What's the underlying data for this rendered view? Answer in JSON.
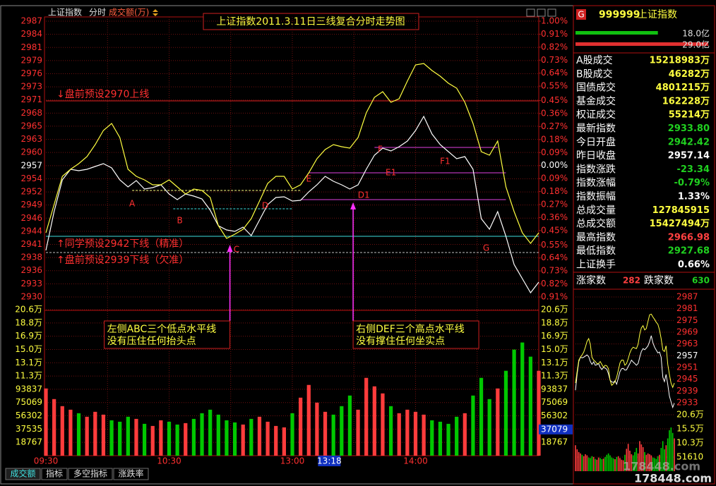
{
  "toolbar": [
    "上证指数",
    "分时",
    "成交额(万)"
  ],
  "chart_data": [
    {
      "type": "line",
      "title": "上证指数2011.3.11日三线复合分时走势图",
      "categories": [
        "09:30",
        null,
        null,
        null,
        null,
        null,
        null,
        null,
        null,
        null,
        null,
        null,
        null,
        null,
        null,
        "10:30",
        null,
        null,
        null,
        null,
        null,
        null,
        null,
        null,
        null,
        null,
        null,
        null,
        null,
        null,
        "13:00",
        null,
        null,
        null,
        null,
        null,
        null,
        null,
        null,
        null,
        null,
        null,
        null,
        null,
        null,
        "14:00",
        null,
        null,
        null,
        null,
        null,
        null,
        null,
        null,
        null,
        null,
        null,
        null,
        null,
        null,
        null
      ],
      "series": [
        {
          "color": "#ffffff",
          "values": [
            2939.79,
            2947.73,
            2954.23,
            2956.39,
            2956.1,
            2956.39,
            2956.97,
            2957.55,
            2956.68,
            2954.23,
            2952.78,
            2954.08,
            2952.35,
            2952.64,
            2953.22,
            2951.34,
            2950.18,
            2951.34,
            2950.91,
            2950.33,
            2948.02,
            2944.84,
            2943.98,
            2943.69,
            2944.55,
            2942.82,
            2946.0,
            2949.17,
            2950.62,
            2950.76,
            2949.9,
            2950.04,
            2951.77,
            2953.22,
            2954.95,
            2953.94,
            2953.22,
            2952.35,
            2953.22,
            2956.39,
            2959.28,
            2960.72,
            2960.15,
            2961.01,
            2962.17,
            2964.33,
            2967.22,
            2963.61,
            2961.45,
            2960.0,
            2958.56,
            2958.99,
            2956.39,
            2946.29,
            2944.12,
            2947.73,
            2942.68,
            2936.9,
            2934.01,
            2931.13,
            2933.29
          ]
        },
        {
          "color": "#ffff40",
          "values": [
            2943.4,
            2949.17,
            2954.95,
            2956.39,
            2957.55,
            2958.99,
            2961.45,
            2964.33,
            2965.78,
            2962.89,
            2956.39,
            2954.95,
            2954.23,
            2953.22,
            2953.22,
            2954.23,
            2952.78,
            2951.34,
            2952.35,
            2952.06,
            2950.62,
            2944.84,
            2942.24,
            2943.11,
            2944.12,
            2946.29,
            2949.9,
            2953.5,
            2954.95,
            2954.95,
            2952.35,
            2953.22,
            2955.67,
            2958.56,
            2960.43,
            2961.45,
            2961.01,
            2960.72,
            2962.89,
            2967.94,
            2971.12,
            2972.27,
            2970.11,
            2970.83,
            2974.44,
            2977.76,
            2978.05,
            2976.6,
            2975.45,
            2974.01,
            2972.99,
            2970.11,
            2965.78,
            2960.0,
            2959.28,
            2962.17,
            2952.78,
            2947.73,
            2943.4,
            2941.23,
            2943.4
          ]
        }
      ],
      "ylim": [
        2930.26,
        2986.71
      ],
      "yticks": [
        {
          "value": 2986.71,
          "label": "2987"
        },
        {
          "value": 2984.02,
          "label": "2984"
        },
        {
          "value": 2981.33,
          "label": "2981"
        },
        {
          "value": 2978.65,
          "label": "2979"
        },
        {
          "value": 2975.96,
          "label": "2976"
        },
        {
          "value": 2973.27,
          "label": "2973"
        },
        {
          "value": 2970.58,
          "label": "2971"
        },
        {
          "value": 2967.89,
          "label": "2968"
        },
        {
          "value": 2965.21,
          "label": "2965"
        },
        {
          "value": 2962.52,
          "label": "2963"
        },
        {
          "value": 2959.83,
          "label": "2960"
        },
        {
          "value": 2957.14,
          "label": "2957"
        },
        {
          "value": 2954.45,
          "label": "2954"
        },
        {
          "value": 2951.76,
          "label": "2952"
        },
        {
          "value": 2949.08,
          "label": "2949"
        },
        {
          "value": 2946.39,
          "label": "2946"
        },
        {
          "value": 2943.7,
          "label": "2944"
        },
        {
          "value": 2941.01,
          "label": "2941"
        },
        {
          "value": 2938.32,
          "label": "2938"
        },
        {
          "value": 2935.64,
          "label": "2936"
        },
        {
          "value": 2932.95,
          "label": "2933"
        },
        {
          "value": 2930.26,
          "label": "2930"
        }
      ],
      "y2lim": [
        -0.91,
        1.0
      ],
      "y2ticks": [
        {
          "value": 1.0,
          "label": "1.00%"
        },
        {
          "value": 0.91,
          "label": "0.91%"
        },
        {
          "value": 0.82,
          "label": "0.82%"
        },
        {
          "value": 0.73,
          "label": "0.73%"
        },
        {
          "value": 0.64,
          "label": "0.64%"
        },
        {
          "value": 0.55,
          "label": "0.55%"
        },
        {
          "value": 0.45,
          "label": "0.45%"
        },
        {
          "value": 0.36,
          "label": "0.36%"
        },
        {
          "value": 0.27,
          "label": "0.27%"
        },
        {
          "value": 0.18,
          "label": "0.18%"
        },
        {
          "value": 0.09,
          "label": "0.09%"
        },
        {
          "value": 0,
          "label": "0.00%"
        },
        {
          "value": -0.09,
          "label": "0.09%"
        },
        {
          "value": -0.18,
          "label": "0.18%"
        },
        {
          "value": -0.27,
          "label": "0.27%"
        },
        {
          "value": -0.36,
          "label": "0.36%"
        },
        {
          "value": -0.45,
          "label": "0.45%"
        },
        {
          "value": -0.55,
          "label": "0.55%"
        },
        {
          "value": -0.64,
          "label": "0.64%"
        },
        {
          "value": -0.73,
          "label": "0.73%"
        },
        {
          "value": -0.82,
          "label": "0.82%"
        },
        {
          "value": -0.91,
          "label": "0.91%"
        }
      ],
      "grid": true,
      "levels": [
        {
          "value": 2970.4,
          "color": "#e02020",
          "label": "↓盘前预设2970上线"
        },
        {
          "value": 2942.68,
          "color": "#40e0e0",
          "label": "↑同学预设2942下线（精准）"
        },
        {
          "value": 2939.36,
          "color": "#c0c0c0",
          "label": "↑盘前预设2939下线（欠准）",
          "dash": true
        },
        {
          "value": 2952.06,
          "from": 10.5,
          "to": 31,
          "color": "#ffff80",
          "dash": true
        },
        {
          "value": 2948.3,
          "from": 15.5,
          "to": 30,
          "color": "#40e0e0",
          "dash": true
        },
        {
          "value": 2950.19,
          "from": 31,
          "to": 56,
          "color": "#e040e0"
        },
        {
          "value": 2955.67,
          "from": 32,
          "to": 56,
          "color": "#e040e0"
        },
        {
          "value": 2960.87,
          "from": 40,
          "to": 55,
          "color": "#e040e0"
        }
      ],
      "points": [
        {
          "label": "A",
          "x": 10.5,
          "y": 2950.62
        },
        {
          "label": "B",
          "x": 16.3,
          "y": 2947.15
        },
        {
          "label": "C",
          "x": 23.2,
          "y": 2941.23
        },
        {
          "label": "D",
          "x": 26.7,
          "y": 2950.19
        },
        {
          "label": "D1",
          "x": 38.7,
          "y": 2952.35
        },
        {
          "label": "E",
          "x": 32,
          "y": 2955.67
        },
        {
          "label": "E1",
          "x": 42,
          "y": 2956.97
        },
        {
          "label": "F",
          "x": 40.7,
          "y": 2961.73
        },
        {
          "label": "F1",
          "x": 48.6,
          "y": 2959.28
        },
        {
          "label": "G",
          "x": 53.6,
          "y": 2941.5
        }
      ],
      "notes": [
        {
          "lines": [
            "左侧ABC三个低点水平线",
            "没有压住任何抬头点"
          ],
          "x": 22.4,
          "y": 2941.5
        },
        {
          "lines": [
            "右侧DEF三个高点水平线",
            "没有撑住任何坐实点"
          ],
          "x": 37.4,
          "y": 2950.2
        }
      ],
      "cursor": {
        "label": "13:18",
        "x": 34.5
      }
    },
    {
      "type": "bar",
      "values": [
        95000,
        80000,
        70000,
        65000,
        60000,
        55000,
        62000,
        58000,
        50000,
        48000,
        55000,
        52000,
        45000,
        42000,
        50000,
        48000,
        44000,
        46000,
        52000,
        60000,
        65000,
        58000,
        50000,
        47000,
        44000,
        52000,
        55000,
        48000,
        42000,
        40000,
        60000,
        82000,
        100000,
        75000,
        62000,
        58000,
        70000,
        85000,
        65000,
        110000,
        98000,
        88000,
        70000,
        60000,
        65000,
        62000,
        58000,
        50000,
        48000,
        45000,
        55000,
        60000,
        85000,
        110000,
        80000,
        95000,
        120000,
        150000,
        160000,
        140000,
        120000
      ],
      "up_color": "#ff3c3c",
      "down_color": "#00c800",
      "ylim": [
        0,
        206437
      ],
      "yticks": [
        {
          "value": 206437,
          "label": "20.6万"
        },
        {
          "value": 187670,
          "label": "18.8万"
        },
        {
          "value": 168903,
          "label": "16.9万"
        },
        {
          "value": 150136,
          "label": "15.0万"
        },
        {
          "value": 131369,
          "label": "13.1万"
        },
        {
          "value": 112602,
          "label": "11.3万"
        },
        93837,
        75069,
        56302,
        37535,
        18767
      ],
      "cursor_value": 37079
    },
    {
      "type": "line",
      "ylim": [
        2933.48,
        2986.71
      ],
      "yticks": [
        {
          "value": 2986.71,
          "label": "2987"
        },
        {
          "value": 2980.8,
          "label": "2981"
        },
        {
          "value": 2974.88,
          "label": "2975"
        },
        {
          "value": 2968.97,
          "label": "2969"
        },
        {
          "value": 2963.05,
          "label": "2963"
        },
        {
          "value": 2957.14,
          "label": "2957"
        },
        {
          "value": 2951.23,
          "label": "2951"
        },
        {
          "value": 2945.31,
          "label": "2945"
        },
        {
          "value": 2939.4,
          "label": "2939"
        },
        {
          "value": 2933.48,
          "label": "2933"
        }
      ],
      "vlim": [
        0,
        206440
      ],
      "vticks": [
        {
          "value": 206440,
          "label": "20.6万"
        },
        {
          "value": 154830,
          "label": "15.5万"
        },
        {
          "value": 103220,
          "label": "10.3万"
        },
        51610
      ]
    }
  ],
  "quote": {
    "tag": "G",
    "code": "999999",
    "name": "上证指数",
    "bars": [
      {
        "value": 18.0,
        "label": "18.0亿",
        "color": "#10c010"
      },
      {
        "value": 29.0,
        "label": "29.0亿",
        "color": "#e03030"
      }
    ],
    "rows": [
      {
        "label": "A股成交",
        "value": "15218983万",
        "color": "#ffff40"
      },
      {
        "label": "B股成交",
        "value": "46282万",
        "color": "#ffff40"
      },
      {
        "label": "国债成交",
        "value": "4801215万",
        "color": "#ffff40"
      },
      {
        "label": "基金成交",
        "value": "162228万",
        "color": "#ffff40"
      },
      {
        "label": "权证成交",
        "value": "55214万",
        "color": "#ffff40"
      },
      {
        "label": "最新指数",
        "value": "2933.80",
        "color": "#20d020"
      },
      {
        "label": "今日开盘",
        "value": "2942.42",
        "color": "#20d020"
      },
      {
        "label": "昨日收盘",
        "value": "2957.14",
        "color": "#ffffff"
      },
      {
        "label": "指数涨跌",
        "value": "-23.34",
        "color": "#20d020"
      },
      {
        "label": "指数涨幅",
        "value": "-0.79%",
        "color": "#20d020"
      },
      {
        "label": "指数振幅",
        "value": "1.33%",
        "color": "#ffffff"
      },
      {
        "label": "总成交量",
        "value": "127845915",
        "color": "#ffff40"
      },
      {
        "label": "总成交额",
        "value": "15427494万",
        "color": "#ffff40"
      },
      {
        "label": "最高指数",
        "value": "2966.98",
        "color": "#ff4040"
      },
      {
        "label": "最低指数",
        "value": "2927.68",
        "color": "#20d020"
      },
      {
        "label": "上证换手",
        "value": "0.66%",
        "color": "#ffffff"
      }
    ],
    "rise_label": "涨家数",
    "rise": 282,
    "fall_label": "跌家数",
    "fall": 630
  },
  "tabs": [
    "成交额",
    "指标",
    "多空指标",
    "涨跌率"
  ],
  "watermark": "178448.com"
}
